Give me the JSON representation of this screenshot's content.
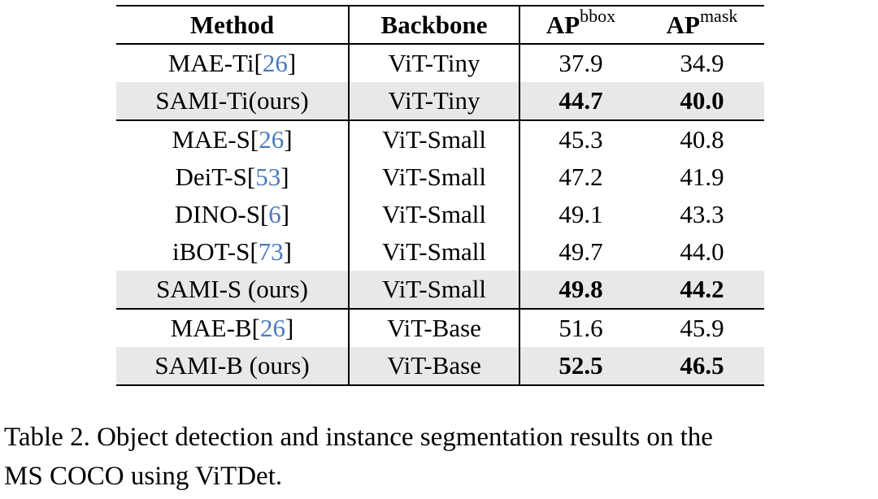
{
  "table": {
    "header": {
      "method": "Method",
      "backbone": "Backbone",
      "ap_bbox_base": "AP",
      "ap_bbox_sup": "bbox",
      "ap_mask_base": "AP",
      "ap_mask_sup": "mask"
    },
    "rows": [
      {
        "method_pre": "MAE-Ti[",
        "method_cite": "26",
        "method_post": "]",
        "backbone": "ViT-Tiny",
        "ap_bbox": "37.9",
        "ap_mask": "34.9",
        "shaded": false,
        "bold_values": false,
        "group_end": false
      },
      {
        "method_pre": "SAMI-Ti(ours)",
        "method_cite": "",
        "method_post": "",
        "backbone": "ViT-Tiny",
        "ap_bbox": "44.7",
        "ap_mask": "40.0",
        "shaded": true,
        "bold_values": true,
        "group_end": true
      },
      {
        "method_pre": "MAE-S[",
        "method_cite": "26",
        "method_post": "]",
        "backbone": "ViT-Small",
        "ap_bbox": "45.3",
        "ap_mask": "40.8",
        "shaded": false,
        "bold_values": false,
        "group_end": false
      },
      {
        "method_pre": "DeiT-S[",
        "method_cite": "53",
        "method_post": "]",
        "backbone": "ViT-Small",
        "ap_bbox": "47.2",
        "ap_mask": "41.9",
        "shaded": false,
        "bold_values": false,
        "group_end": false
      },
      {
        "method_pre": "DINO-S[",
        "method_cite": "6",
        "method_post": "]",
        "backbone": "ViT-Small",
        "ap_bbox": "49.1",
        "ap_mask": "43.3",
        "shaded": false,
        "bold_values": false,
        "group_end": false
      },
      {
        "method_pre": "iBOT-S[",
        "method_cite": "73",
        "method_post": "]",
        "backbone": "ViT-Small",
        "ap_bbox": "49.7",
        "ap_mask": "44.0",
        "shaded": false,
        "bold_values": false,
        "group_end": false
      },
      {
        "method_pre": "SAMI-S (ours)",
        "method_cite": "",
        "method_post": "",
        "backbone": "ViT-Small",
        "ap_bbox": "49.8",
        "ap_mask": "44.2",
        "shaded": true,
        "bold_values": true,
        "group_end": true
      },
      {
        "method_pre": "MAE-B[",
        "method_cite": "26",
        "method_post": "]",
        "backbone": "ViT-Base",
        "ap_bbox": "51.6",
        "ap_mask": "45.9",
        "shaded": false,
        "bold_values": false,
        "group_end": false
      },
      {
        "method_pre": "SAMI-B (ours)",
        "method_cite": "",
        "method_post": "",
        "backbone": "ViT-Base",
        "ap_bbox": "52.5",
        "ap_mask": "46.5",
        "shaded": true,
        "bold_values": true,
        "group_end": false
      }
    ]
  },
  "caption": {
    "line1": "Table 2. Object detection and instance segmentation results on the",
    "line2": "MS COCO using ViTDet."
  },
  "colors": {
    "citation_blue": "#4a7aba",
    "row_highlight": "#e8e8e8",
    "rule_black": "#000000"
  }
}
